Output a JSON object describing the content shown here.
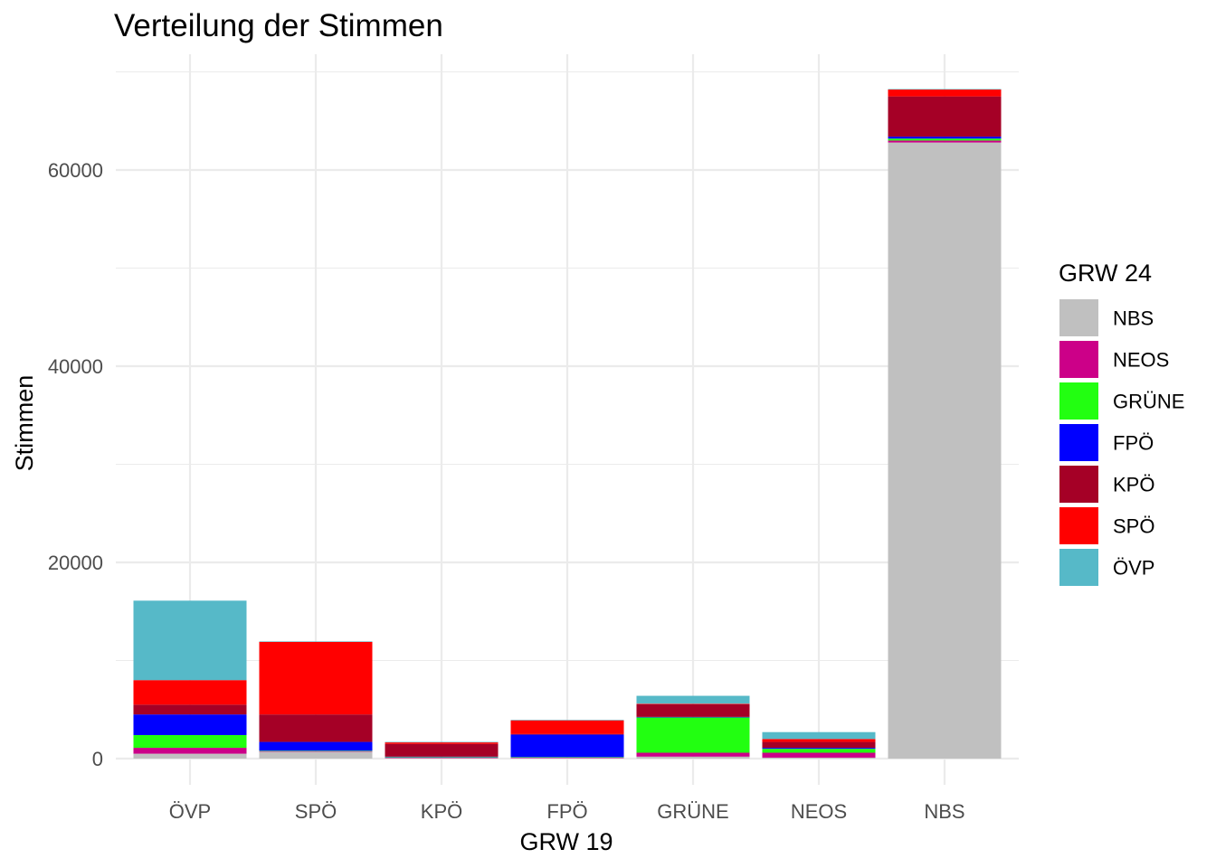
{
  "chart_data": {
    "type": "bar",
    "stacked": true,
    "title": "Verteilung der Stimmen",
    "xlabel": "GRW 19",
    "ylabel": "Stimmen",
    "ylim": [
      -2000,
      71000
    ],
    "yticks": [
      0,
      20000,
      40000,
      60000
    ],
    "y_tick_labels": [
      "0",
      "20000",
      "40000",
      "60000"
    ],
    "grid": true,
    "legend_position": "right",
    "legend_title": "GRW 24",
    "categories": [
      "ÖVP",
      "SPÖ",
      "KPÖ",
      "FPÖ",
      "GRÜNE",
      "NEOS",
      "NBS"
    ],
    "series": [
      {
        "name": "NBS",
        "color": "#C0C0C0",
        "values": [
          500,
          700,
          50,
          50,
          200,
          100,
          62800
        ]
      },
      {
        "name": "NEOS",
        "color": "#CC0088",
        "values": [
          600,
          50,
          50,
          50,
          400,
          500,
          200
        ]
      },
      {
        "name": "GRÜNE",
        "color": "#22FF11",
        "values": [
          1300,
          50,
          50,
          50,
          3600,
          400,
          200
        ]
      },
      {
        "name": "FPÖ",
        "color": "#0000FF",
        "values": [
          2100,
          900,
          50,
          2300,
          50,
          100,
          200
        ]
      },
      {
        "name": "KPÖ",
        "color": "#A50026",
        "values": [
          1000,
          2800,
          1300,
          50,
          1300,
          600,
          4100
        ]
      },
      {
        "name": "SPÖ",
        "color": "#FF0000",
        "values": [
          2500,
          7400,
          150,
          1400,
          50,
          300,
          700
        ]
      },
      {
        "name": "ÖVP",
        "color": "#56B9C8",
        "values": [
          8100,
          50,
          50,
          50,
          800,
          700,
          50
        ]
      }
    ],
    "legend_order": [
      "NBS",
      "NEOS",
      "GRÜNE",
      "FPÖ",
      "KPÖ",
      "SPÖ",
      "ÖVP"
    ]
  }
}
